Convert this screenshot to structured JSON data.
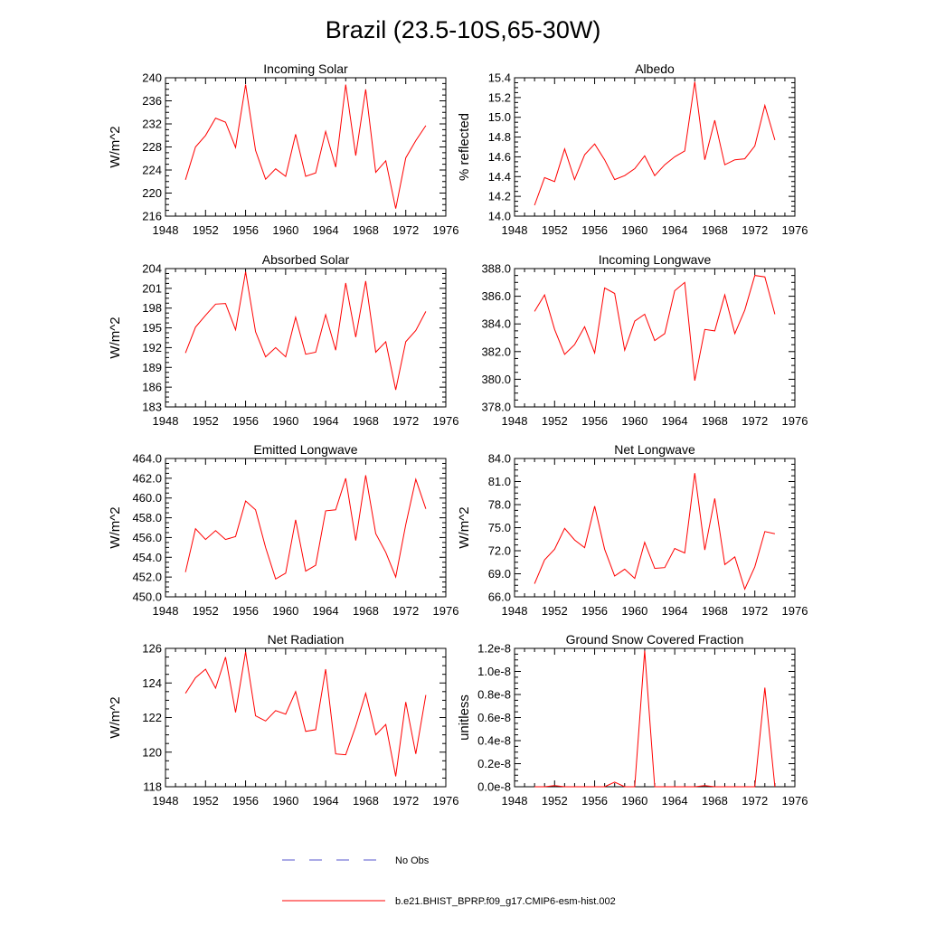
{
  "title": "Brazil (23.5-10S,65-30W)",
  "colors": {
    "series": "#ff0000",
    "obs": "#5555cc",
    "axis": "#000000"
  },
  "chart_data": [
    {
      "type": "line",
      "title": "Incoming Solar",
      "ylabel": "W/m^2",
      "ylim": [
        216,
        240
      ],
      "yticks": [
        216,
        220,
        224,
        228,
        232,
        236,
        240
      ],
      "ytick_labels": [
        "216",
        "220",
        "224",
        "228",
        "232",
        "236",
        "240"
      ],
      "xlim": [
        1948,
        1976
      ],
      "xticks": [
        1948,
        1952,
        1956,
        1960,
        1964,
        1968,
        1972,
        1976
      ],
      "x": [
        1950,
        1951,
        1952,
        1953,
        1954,
        1955,
        1956,
        1957,
        1958,
        1959,
        1960,
        1961,
        1962,
        1963,
        1964,
        1965,
        1966,
        1967,
        1968,
        1969,
        1970,
        1971,
        1972,
        1973,
        1974
      ],
      "values": [
        222.3,
        228.0,
        230.0,
        233.0,
        232.3,
        227.9,
        238.8,
        227.4,
        222.4,
        224.2,
        222.9,
        230.2,
        222.9,
        223.5,
        230.7,
        224.5,
        238.8,
        226.5,
        238.0,
        223.6,
        225.6,
        217.3,
        226.1,
        229.1,
        231.7
      ]
    },
    {
      "type": "line",
      "title": "Albedo",
      "ylabel": "% reflected",
      "ylim": [
        14.0,
        15.4
      ],
      "yticks": [
        14.0,
        14.2,
        14.4,
        14.6,
        14.8,
        15.0,
        15.2,
        15.4
      ],
      "ytick_labels": [
        "14.0",
        "14.2",
        "14.4",
        "14.6",
        "14.8",
        "15.0",
        "15.2",
        "15.4"
      ],
      "xlim": [
        1948,
        1976
      ],
      "xticks": [
        1948,
        1952,
        1956,
        1960,
        1964,
        1968,
        1972,
        1976
      ],
      "x": [
        1950,
        1951,
        1952,
        1953,
        1954,
        1955,
        1956,
        1957,
        1958,
        1959,
        1960,
        1961,
        1962,
        1963,
        1964,
        1965,
        1966,
        1967,
        1968,
        1969,
        1970,
        1971,
        1972,
        1973,
        1974
      ],
      "values": [
        14.11,
        14.39,
        14.35,
        14.68,
        14.37,
        14.62,
        14.73,
        14.57,
        14.37,
        14.41,
        14.48,
        14.61,
        14.41,
        14.52,
        14.6,
        14.66,
        15.36,
        14.57,
        14.97,
        14.52,
        14.57,
        14.58,
        14.71,
        15.12,
        14.77
      ]
    },
    {
      "type": "line",
      "title": "Absorbed Solar",
      "ylabel": "W/m^2",
      "ylim": [
        183,
        204
      ],
      "yticks": [
        183,
        186,
        189,
        192,
        195,
        198,
        201,
        204
      ],
      "ytick_labels": [
        "183",
        "186",
        "189",
        "192",
        "195",
        "198",
        "201",
        "204"
      ],
      "xlim": [
        1948,
        1976
      ],
      "xticks": [
        1948,
        1952,
        1956,
        1960,
        1964,
        1968,
        1972,
        1976
      ],
      "x": [
        1950,
        1951,
        1952,
        1953,
        1954,
        1955,
        1956,
        1957,
        1958,
        1959,
        1960,
        1961,
        1962,
        1963,
        1964,
        1965,
        1966,
        1967,
        1968,
        1969,
        1970,
        1971,
        1972,
        1973,
        1974
      ],
      "values": [
        191.2,
        195.1,
        196.9,
        198.6,
        198.7,
        194.7,
        203.5,
        194.4,
        190.6,
        192.0,
        190.6,
        196.6,
        191.0,
        191.3,
        197.0,
        191.6,
        201.8,
        193.6,
        202.1,
        191.3,
        192.9,
        185.6,
        192.9,
        194.6,
        197.5
      ]
    },
    {
      "type": "line",
      "title": "Incoming Longwave",
      "ylabel": "",
      "ylim": [
        378.0,
        388.0
      ],
      "yticks": [
        378,
        380,
        382,
        384,
        386,
        388
      ],
      "ytick_labels": [
        "378.0",
        "380.0",
        "382.0",
        "384.0",
        "386.0",
        "388.0"
      ],
      "xlim": [
        1948,
        1976
      ],
      "xticks": [
        1948,
        1952,
        1956,
        1960,
        1964,
        1968,
        1972,
        1976
      ],
      "x": [
        1950,
        1951,
        1952,
        1953,
        1954,
        1955,
        1956,
        1957,
        1958,
        1959,
        1960,
        1961,
        1962,
        1963,
        1964,
        1965,
        1966,
        1967,
        1968,
        1969,
        1970,
        1971,
        1972,
        1973,
        1974
      ],
      "values": [
        384.9,
        386.1,
        383.6,
        381.8,
        382.5,
        383.8,
        381.9,
        386.6,
        386.2,
        382.1,
        384.2,
        384.7,
        382.8,
        383.3,
        386.4,
        387.0,
        379.9,
        383.6,
        383.5,
        386.1,
        383.3,
        385.0,
        387.5,
        387.4,
        384.7
      ]
    },
    {
      "type": "line",
      "title": "Emitted Longwave",
      "ylabel": "W/m^2",
      "ylim": [
        450.0,
        464.0
      ],
      "yticks": [
        450,
        452,
        454,
        456,
        458,
        460,
        462,
        464
      ],
      "ytick_labels": [
        "450.0",
        "452.0",
        "454.0",
        "456.0",
        "458.0",
        "460.0",
        "462.0",
        "464.0"
      ],
      "xlim": [
        1948,
        1976
      ],
      "xticks": [
        1948,
        1952,
        1956,
        1960,
        1964,
        1968,
        1972,
        1976
      ],
      "x": [
        1950,
        1951,
        1952,
        1953,
        1954,
        1955,
        1956,
        1957,
        1958,
        1959,
        1960,
        1961,
        1962,
        1963,
        1964,
        1965,
        1966,
        1967,
        1968,
        1969,
        1970,
        1971,
        1972,
        1973,
        1974
      ],
      "values": [
        452.5,
        456.9,
        455.8,
        456.7,
        455.8,
        456.1,
        459.7,
        458.8,
        455.0,
        451.8,
        452.4,
        457.8,
        452.6,
        453.2,
        458.7,
        458.8,
        462.0,
        455.7,
        462.3,
        456.4,
        454.5,
        452.0,
        457.3,
        461.9,
        458.9
      ]
    },
    {
      "type": "line",
      "title": "Net Longwave",
      "ylabel": "W/m^2",
      "ylim": [
        66.0,
        84.0
      ],
      "yticks": [
        66,
        69,
        72,
        75,
        78,
        81,
        84
      ],
      "ytick_labels": [
        "66.0",
        "69.0",
        "72.0",
        "75.0",
        "78.0",
        "81.0",
        "84.0"
      ],
      "xlim": [
        1948,
        1976
      ],
      "xticks": [
        1948,
        1952,
        1956,
        1960,
        1964,
        1968,
        1972,
        1976
      ],
      "x": [
        1950,
        1951,
        1952,
        1953,
        1954,
        1955,
        1956,
        1957,
        1958,
        1959,
        1960,
        1961,
        1962,
        1963,
        1964,
        1965,
        1966,
        1967,
        1968,
        1969,
        1970,
        1971,
        1972,
        1973,
        1974
      ],
      "values": [
        67.7,
        70.8,
        72.2,
        74.9,
        73.4,
        72.4,
        77.8,
        72.2,
        68.7,
        69.6,
        68.4,
        73.1,
        69.7,
        69.8,
        72.3,
        71.7,
        82.1,
        72.1,
        78.8,
        70.2,
        71.2,
        67.0,
        69.9,
        74.5,
        74.2
      ]
    },
    {
      "type": "line",
      "title": "Net Radiation",
      "ylabel": "W/m^2",
      "ylim": [
        118,
        126
      ],
      "yticks": [
        118,
        120,
        122,
        124,
        126
      ],
      "ytick_labels": [
        "118",
        "120",
        "122",
        "124",
        "126"
      ],
      "xlim": [
        1948,
        1976
      ],
      "xticks": [
        1948,
        1952,
        1956,
        1960,
        1964,
        1968,
        1972,
        1976
      ],
      "x": [
        1950,
        1951,
        1952,
        1953,
        1954,
        1955,
        1956,
        1957,
        1958,
        1959,
        1960,
        1961,
        1962,
        1963,
        1964,
        1965,
        1966,
        1967,
        1968,
        1969,
        1970,
        1971,
        1972,
        1973,
        1974
      ],
      "values": [
        123.4,
        124.3,
        124.8,
        123.7,
        125.5,
        122.3,
        125.8,
        122.1,
        121.8,
        122.4,
        122.2,
        123.5,
        121.2,
        121.3,
        124.8,
        119.9,
        119.85,
        121.5,
        123.4,
        121.0,
        121.6,
        118.6,
        122.9,
        119.9,
        123.3
      ]
    },
    {
      "type": "line",
      "title": "Ground Snow Covered Fraction",
      "ylabel": "unitless",
      "ylim": [
        0,
        1.2e-08
      ],
      "yticks": [
        0,
        2e-09,
        4e-09,
        6e-09,
        8e-09,
        1e-08,
        1.2e-08
      ],
      "ytick_labels": [
        "0.0e-8",
        "0.2e-8",
        "0.4e-8",
        "0.6e-8",
        "0.8e-8",
        "1.0e-8",
        "1.2e-8"
      ],
      "xlim": [
        1948,
        1976
      ],
      "xticks": [
        1948,
        1952,
        1956,
        1960,
        1964,
        1968,
        1972,
        1976
      ],
      "x": [
        1950,
        1951,
        1952,
        1953,
        1954,
        1955,
        1956,
        1957,
        1958,
        1959,
        1960,
        1961,
        1962,
        1963,
        1964,
        1965,
        1966,
        1967,
        1968,
        1969,
        1970,
        1971,
        1972,
        1973,
        1974
      ],
      "values": [
        0,
        0,
        1e-10,
        0,
        0,
        0,
        0,
        0,
        4e-10,
        0,
        0,
        1.18e-08,
        0,
        0,
        0,
        0,
        0,
        1e-10,
        0,
        0,
        0,
        0,
        0,
        8.6e-09,
        0
      ]
    }
  ],
  "legend": {
    "obs_label": "No Obs",
    "model_label": "b.e21.BHIST_BPRP.f09_g17.CMIP6-esm-hist.002"
  }
}
